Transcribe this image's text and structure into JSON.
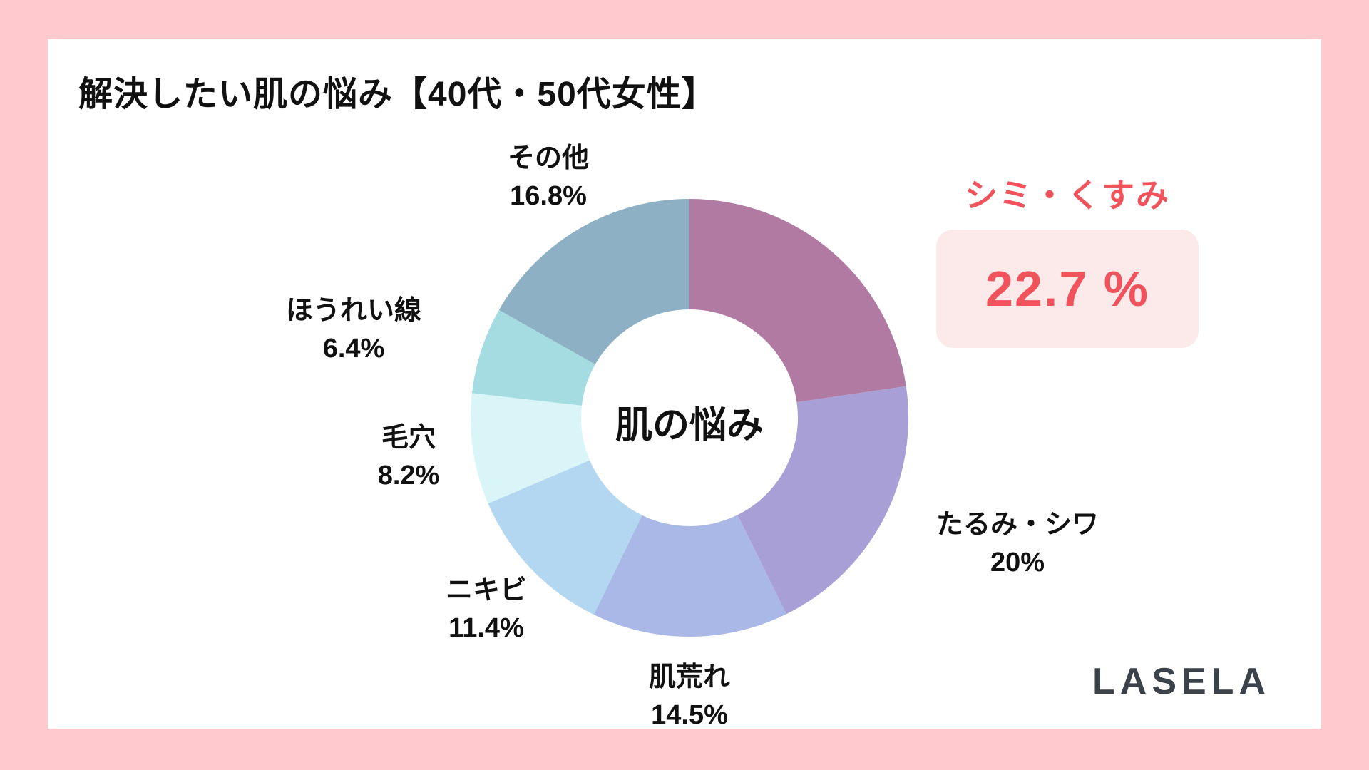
{
  "page": {
    "title": "解決したい肌の悩み【40代・50代女性】",
    "logo_text": "LASELA",
    "background_color": "#FFC9CD",
    "card_color": "#FFFFFF"
  },
  "highlight": {
    "label": "シミ・くすみ",
    "value": "22.7 %",
    "text_color": "#F0535B",
    "box_color": "#FCE9EA"
  },
  "chart_data": {
    "type": "pie",
    "donut": true,
    "title": "解決したい肌の悩み【40代・50代女性】",
    "center_label": "肌の悩み",
    "start_angle_deg": 0,
    "direction": "clockwise",
    "categories": [
      "シミ・くすみ",
      "たるみ・シワ",
      "肌荒れ",
      "ニキビ",
      "毛穴",
      "ほうれい線",
      "その他"
    ],
    "values": [
      22.7,
      20,
      14.5,
      11.4,
      8.2,
      6.4,
      16.8
    ],
    "value_labels": [
      "22.7 %",
      "20%",
      "14.5%",
      "11.4%",
      "8.2%",
      "6.4%",
      "16.8%"
    ],
    "colors": [
      "#B07AA2",
      "#A79FD5",
      "#A9B8E6",
      "#B3D7F0",
      "#D9F5F8",
      "#A4DCE2",
      "#8EB0C5"
    ],
    "legend_position": "around-slices",
    "grid": false
  }
}
